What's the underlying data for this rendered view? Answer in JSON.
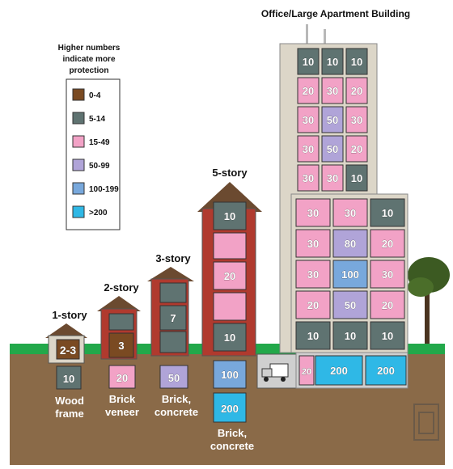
{
  "colors": {
    "c0_4": "#7a4a22",
    "c5_14": "#5f7371",
    "c15_49": "#f2a2c6",
    "c50_99": "#b0a4d8",
    "c100_199": "#78a8dc",
    "c200": "#2fb8e6",
    "ground": "#8a6a48",
    "grass": "#22a84a",
    "brick": "#b03a2e",
    "wall": "#dcd6c8",
    "roof": "#6b4a30"
  },
  "legend": {
    "title_lines": [
      "Higher numbers",
      "indicate more",
      "protection"
    ],
    "items": [
      {
        "label": "0-4",
        "color": "#7a4a22"
      },
      {
        "label": "5-14",
        "color": "#5f7371"
      },
      {
        "label": "15-49",
        "color": "#f2a2c6"
      },
      {
        "label": "50-99",
        "color": "#b0a4d8"
      },
      {
        "label": "100-199",
        "color": "#78a8dc"
      },
      {
        "label": ">200",
        "color": "#2fb8e6"
      }
    ]
  },
  "buildings": {
    "one_story": {
      "title": "1-story",
      "floor": "2-3",
      "basement": "10",
      "caption_lines": [
        "Wood",
        "frame"
      ]
    },
    "two_story": {
      "title": "2-story",
      "floor": "3",
      "basement": "20",
      "caption_lines": [
        "Brick",
        "veneer"
      ]
    },
    "three_story": {
      "title": "3-story",
      "floor": "7",
      "upper": "50",
      "caption_lines": [
        "Brick,",
        "concrete"
      ]
    },
    "five_story": {
      "title": "5-story",
      "top": "10",
      "middle": "20",
      "bottom": "10",
      "basement1": "100",
      "basement2": "200",
      "caption_lines": [
        "Brick,",
        "concrete"
      ]
    },
    "office": {
      "title": "Office/Large Apartment Building",
      "tower_rows": [
        [
          "10",
          "10",
          "10"
        ],
        [
          "20",
          "30",
          "20"
        ],
        [
          "30",
          "50",
          "30"
        ],
        [
          "30",
          "50",
          "20"
        ],
        [
          "30",
          "30",
          "10"
        ]
      ],
      "wide_rows": [
        [
          "30",
          "30",
          "10"
        ],
        [
          "30",
          "80",
          "20"
        ],
        [
          "30",
          "100",
          "30"
        ],
        [
          "20",
          "50",
          "20"
        ],
        [
          "10",
          "10",
          "10"
        ]
      ],
      "basement": [
        "20",
        "200",
        "200"
      ]
    }
  }
}
